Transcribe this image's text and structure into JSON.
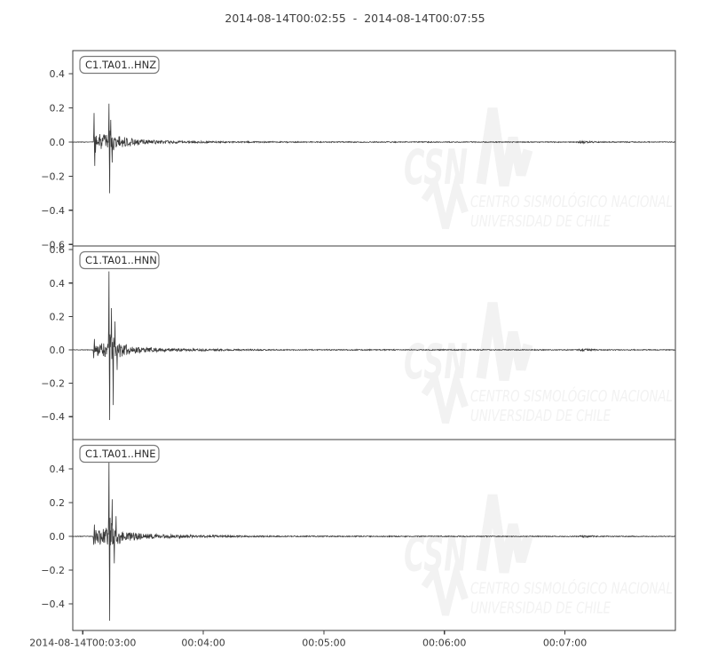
{
  "figure": {
    "title": "2014-08-14T00:02:55  -  2014-08-14T00:07:55",
    "background_color": "#ffffff",
    "trace_color": "#3a3a3a",
    "axis_color": "#3c3c3c",
    "text_color": "#3a3a3a",
    "label_box_border_color": "#7a7a7a",
    "watermark_color": "#f2f2f2"
  },
  "watermark": {
    "brand": "CSN",
    "line1": "CENTRO SISMOLÓGICO NACIONAL",
    "line2": "UNIVERSIDAD DE CHILE"
  },
  "chart_data": {
    "type": "line",
    "title": "2014-08-14T00:02:55  -  2014-08-14T00:07:55",
    "time_start": "2014-08-14T00:02:55",
    "time_end": "2014-08-14T00:07:55",
    "duration_seconds": 300,
    "xlabel": "",
    "ylabel": "",
    "grid": false,
    "legend_position": "none",
    "xticks": [
      {
        "seconds": 5,
        "label": "2014-08-14T00:03:00"
      },
      {
        "seconds": 65,
        "label": "00:04:00"
      },
      {
        "seconds": 125,
        "label": "00:05:00"
      },
      {
        "seconds": 185,
        "label": "00:06:00"
      },
      {
        "seconds": 245,
        "label": "00:07:00"
      }
    ],
    "panels": [
      {
        "trace_id": "C1.TA01..HNZ",
        "ylim": [
          -0.609,
          0.536
        ],
        "yticks": [
          0.4,
          0.2,
          0.0,
          -0.2,
          -0.4,
          -0.6
        ],
        "onset_seconds": 10.6,
        "peak_amplitude": 0.23,
        "min_amplitude": -0.3,
        "aftershock_seconds": 254,
        "seed": 3,
        "spikes": [
          [
            10.65,
            0.17
          ],
          [
            10.9,
            -0.14
          ],
          [
            17.95,
            0.225
          ],
          [
            18.35,
            -0.3
          ],
          [
            18.9,
            0.13
          ],
          [
            19.6,
            -0.12
          ]
        ],
        "envelope": [
          [
            0,
            0.002
          ],
          [
            10.4,
            0.002
          ],
          [
            10.6,
            0.085
          ],
          [
            12,
            0.06
          ],
          [
            14,
            0.05
          ],
          [
            17.8,
            0.05
          ],
          [
            18.3,
            0.075
          ],
          [
            19.5,
            0.06
          ],
          [
            22,
            0.042
          ],
          [
            26,
            0.03
          ],
          [
            32,
            0.02
          ],
          [
            40,
            0.013
          ],
          [
            50,
            0.009
          ],
          [
            65,
            0.006
          ],
          [
            85,
            0.0045
          ],
          [
            110,
            0.0035
          ],
          [
            251,
            0.0028
          ],
          [
            254,
            0.011
          ],
          [
            256,
            0.007
          ],
          [
            262,
            0.0035
          ],
          [
            300,
            0.0025
          ]
        ]
      },
      {
        "trace_id": "C1.TA01..HNN",
        "ylim": [
          -0.537,
          0.622
        ],
        "yticks": [
          0.6,
          0.4,
          0.2,
          0.0,
          -0.2,
          -0.4
        ],
        "onset_seconds": 10.6,
        "peak_amplitude": 0.47,
        "min_amplitude": -0.42,
        "aftershock_seconds": 254,
        "seed": 11,
        "spikes": [
          [
            10.5,
            -0.05
          ],
          [
            10.7,
            0.065
          ],
          [
            17.95,
            0.47
          ],
          [
            18.35,
            -0.42
          ],
          [
            19.3,
            0.25
          ],
          [
            20.2,
            -0.33
          ],
          [
            21.0,
            0.17
          ],
          [
            22.0,
            -0.12
          ]
        ],
        "envelope": [
          [
            0,
            0.002
          ],
          [
            10.4,
            0.002
          ],
          [
            10.6,
            0.05
          ],
          [
            12,
            0.045
          ],
          [
            17.8,
            0.05
          ],
          [
            18.3,
            0.09
          ],
          [
            19.5,
            0.075
          ],
          [
            22,
            0.05
          ],
          [
            26,
            0.035
          ],
          [
            32,
            0.022
          ],
          [
            40,
            0.015
          ],
          [
            50,
            0.01
          ],
          [
            65,
            0.007
          ],
          [
            85,
            0.005
          ],
          [
            110,
            0.0035
          ],
          [
            251,
            0.0028
          ],
          [
            254,
            0.009
          ],
          [
            256,
            0.006
          ],
          [
            262,
            0.0035
          ],
          [
            300,
            0.0025
          ]
        ]
      },
      {
        "trace_id": "C1.TA01..HNE",
        "ylim": [
          -0.558,
          0.574
        ],
        "yticks": [
          0.4,
          0.2,
          0.0,
          -0.2,
          -0.4
        ],
        "onset_seconds": 10.6,
        "peak_amplitude": 0.455,
        "min_amplitude": -0.5,
        "aftershock_seconds": 254,
        "seed": 23,
        "spikes": [
          [
            10.5,
            -0.05
          ],
          [
            10.7,
            0.07
          ],
          [
            17.95,
            0.455
          ],
          [
            18.35,
            -0.5
          ],
          [
            19.6,
            0.22
          ],
          [
            20.6,
            -0.16
          ],
          [
            21.5,
            0.12
          ]
        ],
        "envelope": [
          [
            0,
            0.002
          ],
          [
            10.4,
            0.002
          ],
          [
            10.6,
            0.055
          ],
          [
            12,
            0.05
          ],
          [
            17.8,
            0.055
          ],
          [
            18.3,
            0.095
          ],
          [
            19.5,
            0.08
          ],
          [
            22,
            0.055
          ],
          [
            26,
            0.038
          ],
          [
            32,
            0.024
          ],
          [
            40,
            0.016
          ],
          [
            50,
            0.011
          ],
          [
            65,
            0.0075
          ],
          [
            85,
            0.005
          ],
          [
            110,
            0.0038
          ],
          [
            251,
            0.0028
          ],
          [
            254,
            0.01
          ],
          [
            256,
            0.0065
          ],
          [
            262,
            0.0035
          ],
          [
            300,
            0.0025
          ]
        ]
      }
    ]
  }
}
